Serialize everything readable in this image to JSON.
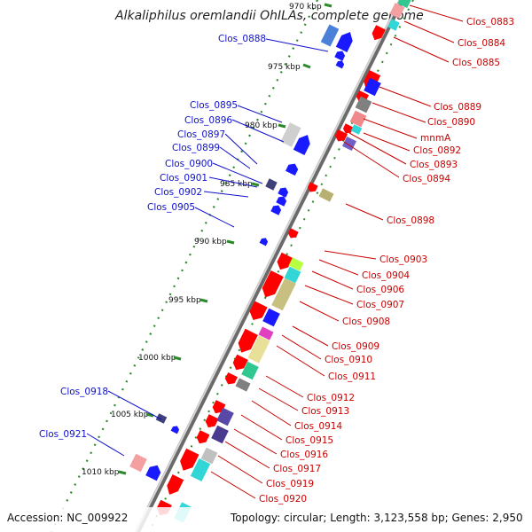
{
  "title": "Alkaliphilus oremlandii OhILAs, complete genome",
  "accession": "Accession: NC_009922",
  "topology": "Topology: circular; Length: 3,123,558 bp; Genes: 2,950",
  "ticks": [
    "970 kbp",
    "975 kbp",
    "980 kbp",
    "985 kbp",
    "990 kbp",
    "995 kbp",
    "1000 kbp",
    "1005 kbp",
    "1010 kbp"
  ],
  "left_labels": [
    "Clos_0888",
    "Clos_0895",
    "Clos_0896",
    "Clos_0897",
    "Clos_0899",
    "Clos_0900",
    "Clos_0901",
    "Clos_0902",
    "Clos_0905",
    "Clos_0918",
    "Clos_0921"
  ],
  "right_labels": [
    "Clos_0883",
    "Clos_0884",
    "Clos_0885",
    "Clos_0889",
    "Clos_0890",
    "mnmA",
    "Clos_0892",
    "Clos_0893",
    "Clos_0894",
    "Clos_0898",
    "Clos_0903",
    "Clos_0904",
    "Clos_0906",
    "Clos_0907",
    "Clos_0908",
    "Clos_0909",
    "Clos_0910",
    "Clos_0911",
    "Clos_0912",
    "Clos_0913",
    "Clos_0914",
    "Clos_0915",
    "Clos_0916",
    "Clos_0917",
    "Clos_0919",
    "Clos_0920"
  ],
  "colors": {
    "forward_strand": "#0000ff",
    "reverse_strand": "#ff0000",
    "backbone": "#999999",
    "tick_mark": "#2a8a2a",
    "left_label": "#1010c8",
    "right_label": "#c80000"
  }
}
